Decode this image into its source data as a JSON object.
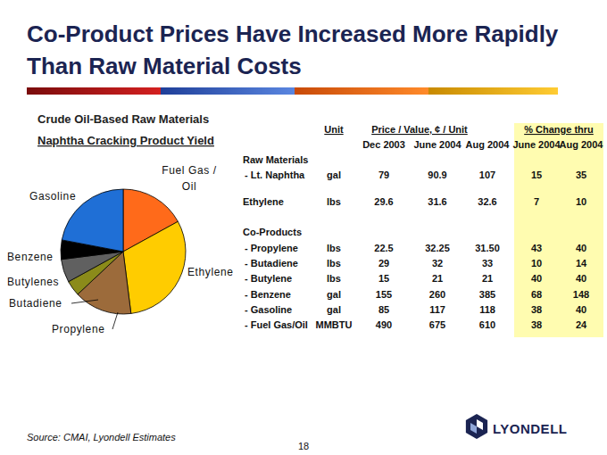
{
  "chart_data": {
    "type": "pie",
    "title": "Crude Oil-Based Raw Materials",
    "subtitle": "Naphtha Cracking Product Yield",
    "categories": [
      "Fuel Gas / Oil",
      "Ethylene",
      "Propylene",
      "Butadiene",
      "Butylenes",
      "Benzene",
      "Gasoline"
    ],
    "values": [
      17,
      31,
      15,
      4,
      6,
      5,
      22
    ],
    "colors": [
      "#ff6a1a",
      "#ffcc00",
      "#9c6b3b",
      "#8b8b1a",
      "#606060",
      "#000000",
      "#1f6fd6"
    ]
  },
  "slide": {
    "title": [
      "Co-Product Prices Have Increased More Rapidly",
      "Than Raw Material Costs"
    ],
    "table": {
      "header": [
        "Unit",
        "Price / Value, ¢ / Unit",
        "% Change thru"
      ],
      "subheader": [
        "Dec 2003",
        "June 2004",
        "Aug 2004",
        "June 2004",
        "Aug 2004"
      ],
      "rows": [
        [
          "Raw Materials"
        ],
        [
          "- Lt. Naphtha",
          "gal",
          "79",
          "90.9",
          "107",
          "15",
          "35"
        ],
        [
          "Ethylene",
          "lbs",
          "29.6",
          "31.6",
          "32.6",
          "7",
          "10"
        ],
        [
          "Co-Products"
        ],
        [
          "- Propylene",
          "lbs",
          "22.5",
          "32.25",
          "31.50",
          "43",
          "40"
        ],
        [
          "- Butadiene",
          "lbs",
          "29",
          "32",
          "33",
          "10",
          "14"
        ],
        [
          "- Butylene",
          "lbs",
          "15",
          "21",
          "21",
          "40",
          "40"
        ],
        [
          "- Benzene",
          "gal",
          "155",
          "260",
          "385",
          "68",
          "148"
        ],
        [
          "- Gasoline",
          "gal",
          "85",
          "117",
          "118",
          "38",
          "40"
        ],
        [
          "- Fuel Gas/Oil",
          "MMBTU",
          "490",
          "675",
          "610",
          "38",
          "24"
        ]
      ]
    },
    "source": "Source:  CMAI, Lyondell Estimates",
    "page": "18",
    "logo": "LYONDELL"
  }
}
